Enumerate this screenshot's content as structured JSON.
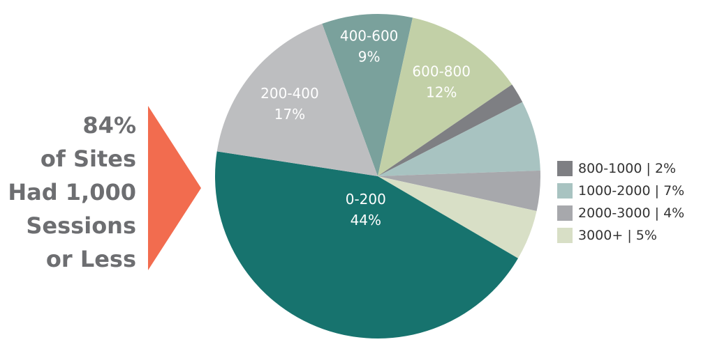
{
  "chart_data": {
    "type": "pie",
    "categories": [
      "400-600",
      "600-800",
      "800-1000",
      "1000-2000",
      "2000-3000",
      "3000+",
      "0-200",
      "200-400"
    ],
    "values": [
      9,
      12,
      2,
      7,
      4,
      5,
      44,
      17
    ],
    "value_labels": [
      "9%",
      "12%",
      "2%",
      "7%",
      "4%",
      "5%",
      "44%",
      "17%"
    ],
    "colors": [
      "#7aa19c",
      "#c2d0a7",
      "#7e7f83",
      "#a8c3c1",
      "#a7a8ac",
      "#d8dfc6",
      "#17736e",
      "#bdbec0"
    ],
    "label_position": [
      "inside",
      "inside",
      "legend",
      "legend",
      "legend",
      "legend",
      "inside",
      "inside"
    ],
    "legend_separator": " | ",
    "legend": "right",
    "annotation": [
      "84%",
      "of Sites",
      "Had 1,000",
      "Sessions",
      "or Less"
    ]
  }
}
